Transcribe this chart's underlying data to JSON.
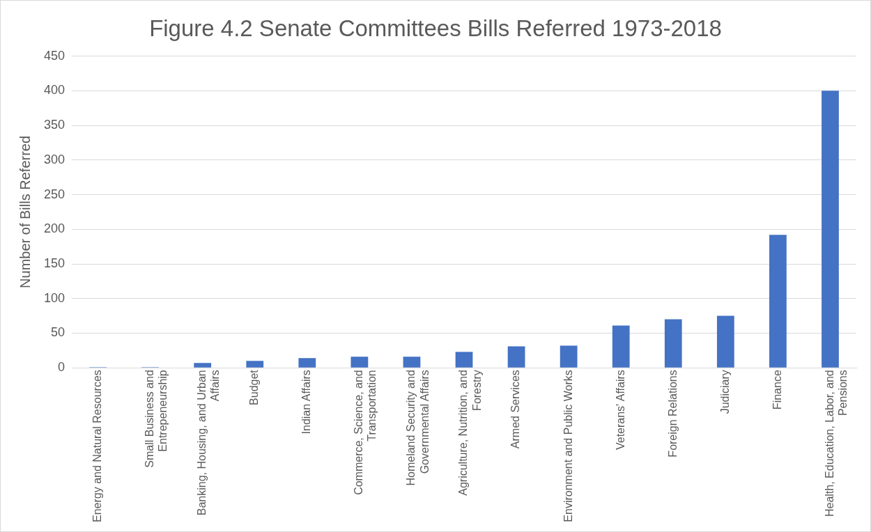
{
  "chart_data": {
    "type": "bar",
    "title": "Figure 4.2 Senate Committees Bills Referred 1973-2018",
    "ylabel": "Number of Bills Referred",
    "categories": [
      "Energy and Natural Resources",
      "Small Business and Entrepeneurship",
      "Banking, Housing, and Urban Affairs",
      "Budget",
      "Indian Affairs",
      "Commerce, Science, and Transportation",
      "Homeland Security and Governmental Affairs",
      "Agriculture, Nutrition, and Forestry",
      "Armed Services",
      "Environment and Public Works",
      "Veterans' Affairs",
      "Foreign Relations",
      "Judiciary",
      "Finance",
      "Health, Education, Labor, and Pensions"
    ],
    "values": [
      1,
      1,
      7,
      10,
      14,
      16,
      16,
      23,
      31,
      32,
      61,
      70,
      75,
      192,
      400
    ],
    "color": "#4472c4",
    "ylim": [
      0,
      450
    ],
    "yticks": [
      0,
      50,
      100,
      150,
      200,
      250,
      300,
      350,
      400,
      450
    ],
    "grid": "y",
    "legend": false
  }
}
